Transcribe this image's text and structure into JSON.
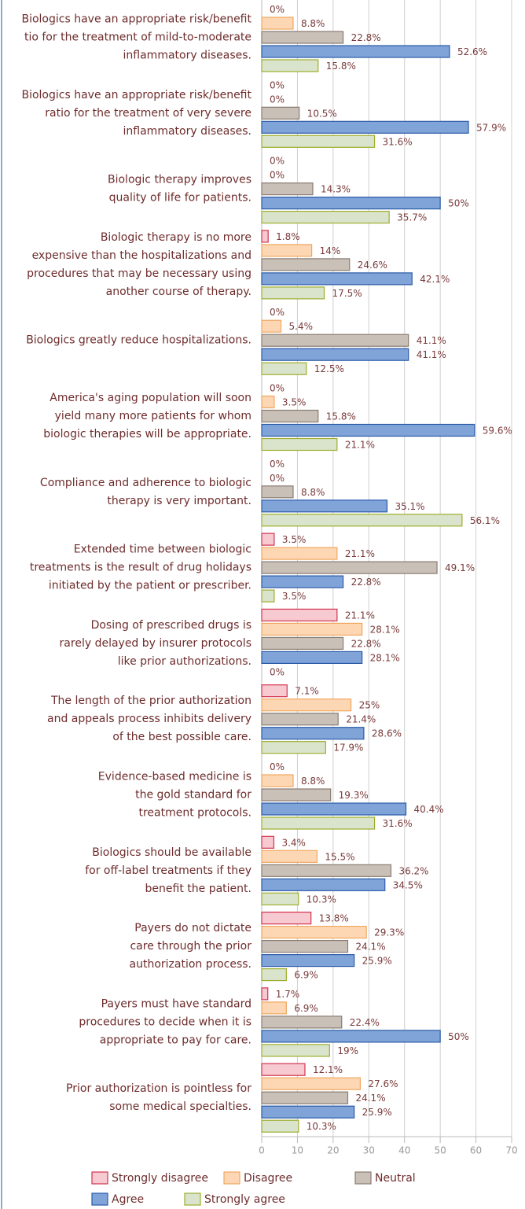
{
  "chart_data": {
    "type": "bar",
    "orientation": "horizontal",
    "categories": [
      [
        "Biologics have an appropriate risk/benefit",
        "tio for the treatment of mild-to-moderate",
        "inflammatory diseases."
      ],
      [
        "Biologics have an appropriate risk/benefit",
        "ratio for the treatment of very severe",
        "inflammatory diseases."
      ],
      [
        "Biologic therapy improves",
        "quality of life for patients."
      ],
      [
        "Biologic therapy is no more",
        "expensive than the hospitalizations and",
        "procedures that may be necessary using",
        "another course of therapy."
      ],
      [
        "Biologics greatly reduce hospitalizations."
      ],
      [
        "America's aging population will soon",
        "yield many more patients for whom",
        "biologic therapies will be appropriate."
      ],
      [
        "Compliance and adherence to biologic",
        "therapy is very important."
      ],
      [
        "Extended time between biologic",
        "treatments is the result of drug holidays",
        "initiated by the patient or prescriber."
      ],
      [
        "Dosing of prescribed drugs is",
        "rarely delayed by insurer protocols",
        "like prior authorizations."
      ],
      [
        "The length of the prior authorization",
        "and appeals process inhibits delivery",
        "of the best possible care."
      ],
      [
        "Evidence-based medicine is",
        "the gold standard for",
        "treatment protocols."
      ],
      [
        "Biologics should be available",
        "for off-label treatments if they",
        "benefit the patient."
      ],
      [
        "Payers do not dictate",
        "care through the prior",
        "authorization process."
      ],
      [
        "Payers must have standard",
        "procedures to decide when it is",
        "appropriate to pay for care."
      ],
      [
        "Prior authorization is pointless for",
        "some medical specialties."
      ]
    ],
    "series": [
      {
        "name": "Strongly disagree",
        "color": "#f7c9d1",
        "stroke": "#d2344f",
        "values": [
          0,
          0,
          0,
          1.8,
          0,
          0,
          0,
          3.5,
          21.1,
          7.1,
          0,
          3.4,
          13.8,
          1.7,
          12.1
        ],
        "value_labels": [
          "0%",
          "0%",
          "0%",
          "1.8%",
          "0%",
          "0%",
          "0%",
          "3.5%",
          "21.1%",
          "7.1%",
          "0%",
          "3.4%",
          "13.8%",
          "1.7%",
          "12.1%"
        ]
      },
      {
        "name": "Disagree",
        "color": "#fdd7b3",
        "stroke": "#f0a760",
        "values": [
          8.8,
          0,
          0,
          14,
          5.4,
          3.5,
          0,
          21.1,
          28.1,
          25,
          8.8,
          15.5,
          29.3,
          6.9,
          27.6
        ],
        "value_labels": [
          "8.8%",
          "0%",
          "0%",
          "14%",
          "5.4%",
          "3.5%",
          "0%",
          "21.1%",
          "28.1%",
          "25%",
          "8.8%",
          "15.5%",
          "29.3%",
          "6.9%",
          "27.6%"
        ]
      },
      {
        "name": "Neutral",
        "color": "#c9c0b8",
        "stroke": "#8a7c72",
        "values": [
          22.8,
          10.5,
          14.3,
          24.6,
          41.1,
          15.8,
          8.8,
          49.1,
          22.8,
          21.4,
          19.3,
          36.2,
          24.1,
          22.4,
          24.1
        ],
        "value_labels": [
          "22.8%",
          "10.5%",
          "14.3%",
          "24.6%",
          "41.1%",
          "15.8%",
          "8.8%",
          "49.1%",
          "22.8%",
          "21.4%",
          "19.3%",
          "36.2%",
          "24.1%",
          "22.4%",
          "24.1%"
        ]
      },
      {
        "name": "Agree",
        "color": "#80a4d8",
        "stroke": "#2b5ba8",
        "values": [
          52.6,
          57.9,
          50,
          42.1,
          41.1,
          59.6,
          35.1,
          22.8,
          28.1,
          28.6,
          40.4,
          34.5,
          25.9,
          50,
          25.9
        ],
        "value_labels": [
          "52.6%",
          "57.9%",
          "50%",
          "42.1%",
          "41.1%",
          "59.6%",
          "35.1%",
          "22.8%",
          "28.1%",
          "28.6%",
          "40.4%",
          "34.5%",
          "25.9%",
          "50%",
          "25.9%"
        ]
      },
      {
        "name": "Strongly agree",
        "color": "#dae4cc",
        "stroke": "#9cae2c",
        "values": [
          15.8,
          31.6,
          35.7,
          17.5,
          12.5,
          21.1,
          56.1,
          3.5,
          0,
          17.9,
          31.6,
          10.3,
          6.9,
          19,
          10.3
        ],
        "value_labels": [
          "15.8%",
          "31.6%",
          "35.7%",
          "17.5%",
          "12.5%",
          "21.1%",
          "56.1%",
          "3.5%",
          "0%",
          "17.9%",
          "31.6%",
          "10.3%",
          "6.9%",
          "19%",
          "10.3%"
        ]
      }
    ],
    "xlim": [
      0,
      70
    ],
    "xticks": [
      0,
      10,
      20,
      30,
      40,
      50,
      60,
      70
    ],
    "grid": true,
    "legend": "bottom"
  }
}
